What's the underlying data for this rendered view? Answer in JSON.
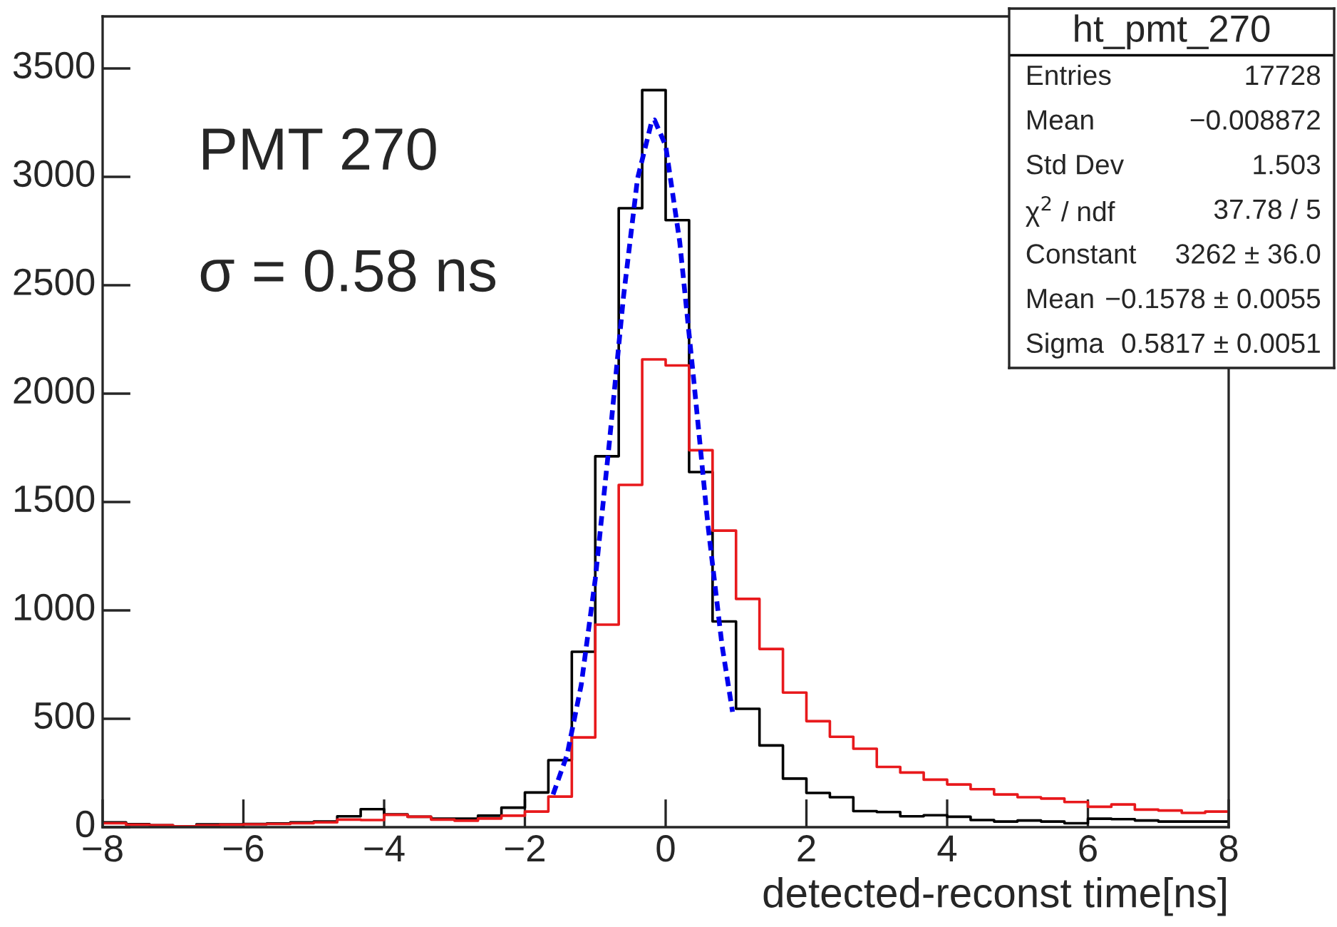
{
  "chart_data": [
    {
      "type": "histogram",
      "xlabel": "detected-reconst time[ns]",
      "bins": [
        -8,
        -7.6667,
        -7.3333,
        -7,
        -6.6667,
        -6.3333,
        -6,
        -5.6667,
        -5.3333,
        -5,
        -4.6667,
        -4.3333,
        -4,
        -3.6667,
        -3.3333,
        -3,
        -2.6667,
        -2.3333,
        -2,
        -1.6667,
        -1.3333,
        -1,
        -0.6667,
        -0.3333,
        0,
        0.3333,
        0.6667,
        1,
        1.3333,
        1.6667,
        2,
        2.3333,
        2.6667,
        3,
        3.3333,
        3.6667,
        4,
        4.3333,
        4.6667,
        5,
        5.3333,
        5.6667,
        6,
        6.3333,
        6.6667,
        7,
        7.3333,
        7.6667,
        8
      ],
      "series": [
        {
          "type": "histogram",
          "color": "#000000",
          "values": [
            22,
            14,
            9,
            4,
            13,
            13,
            15,
            17,
            22,
            26,
            50,
            83,
            59,
            48,
            39,
            39,
            53,
            90,
            160,
            309,
            809,
            1711,
            2855,
            3400,
            2800,
            1638,
            949,
            546,
            377,
            224,
            158,
            138,
            74,
            70,
            50,
            55,
            48,
            33,
            26,
            31,
            26,
            18,
            39,
            37,
            31,
            26,
            26,
            26
          ]
        },
        {
          "type": "histogram",
          "color": "#e8191c",
          "values": [
            18,
            11,
            9,
            4,
            9,
            11,
            13,
            15,
            18,
            22,
            35,
            33,
            57,
            48,
            35,
            30,
            40,
            53,
            72,
            141,
            414,
            934,
            1579,
            2158,
            2130,
            1739,
            1368,
            1053,
            822,
            621,
            489,
            417,
            362,
            278,
            252,
            219,
            197,
            175,
            151,
            138,
            132,
            116,
            94,
            105,
            81,
            77,
            66,
            72
          ]
        },
        {
          "type": "line",
          "color": "#0000ee",
          "line_style": "dashed",
          "x": [
            -1.6,
            -1.4,
            -1.2,
            -1.0,
            -0.8,
            -0.6,
            -0.4,
            -0.2,
            -0.1578,
            0,
            0.2,
            0.4,
            0.6,
            0.8,
            0.95
          ],
          "values": [
            151,
            334,
            655,
            1144,
            1774,
            2444,
            2991,
            3253,
            3262,
            3144,
            2700,
            2060,
            1396,
            841,
            532
          ]
        }
      ],
      "xlim": [
        -8,
        8
      ],
      "ylim": [
        0,
        3740
      ],
      "xticks": [
        {
          "value": -8,
          "label": "−8"
        },
        {
          "value": -6,
          "label": "−6"
        },
        {
          "value": -4,
          "label": "−4"
        },
        {
          "value": -2,
          "label": "−2"
        },
        0,
        2,
        4,
        6,
        8
      ],
      "yticks": [
        0,
        500,
        1000,
        1500,
        2000,
        2500,
        3000,
        3500
      ],
      "annotations": [
        "PMT 270",
        "σ = 0.58 ns"
      ]
    },
    {
      "type": "other",
      "title": "ht_pmt_270",
      "annotations": [
        "Entries",
        "17728",
        "Mean",
        "−0.008872",
        "Std Dev",
        "1.503",
        "χ$^{2}$ / ndf",
        "37.78 / 5",
        "Constant",
        "3262 ± 36.0",
        "Mean",
        "−0.1578 ± 0.0055",
        "Sigma",
        "0.5817 ± 0.0051"
      ]
    }
  ]
}
